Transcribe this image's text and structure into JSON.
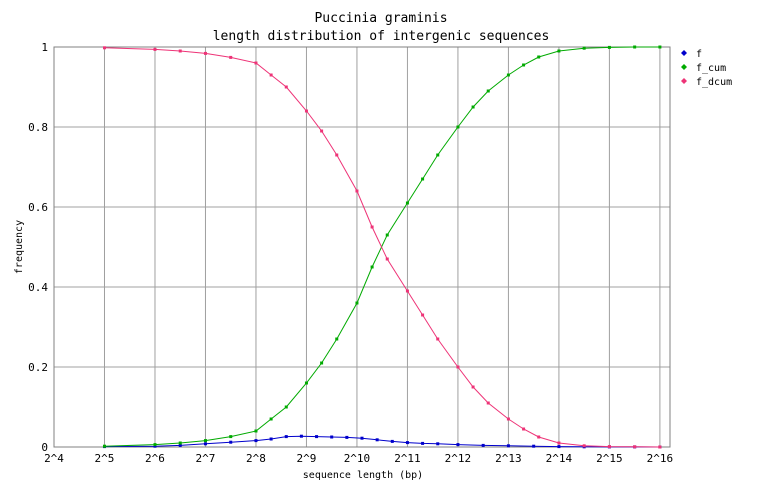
{
  "chart_data": {
    "type": "line",
    "title": "Puccinia graminis",
    "subtitle": "length distribution of intergenic sequences",
    "xlabel": "sequence length (bp)",
    "ylabel": "frequency",
    "xscale": "log2",
    "xlim": [
      4,
      16.2
    ],
    "ylim": [
      0,
      1
    ],
    "grid": true,
    "legend_position": "right",
    "x_ticks": [
      {
        "exp": 4,
        "label": "2^4"
      },
      {
        "exp": 5,
        "label": "2^5"
      },
      {
        "exp": 6,
        "label": "2^6"
      },
      {
        "exp": 7,
        "label": "2^7"
      },
      {
        "exp": 8,
        "label": "2^8"
      },
      {
        "exp": 9,
        "label": "2^9"
      },
      {
        "exp": 10,
        "label": "2^10"
      },
      {
        "exp": 11,
        "label": "2^11"
      },
      {
        "exp": 12,
        "label": "2^12"
      },
      {
        "exp": 13,
        "label": "2^13"
      },
      {
        "exp": 14,
        "label": "2^14"
      },
      {
        "exp": 15,
        "label": "2^15"
      },
      {
        "exp": 16,
        "label": "2^16"
      }
    ],
    "y_ticks": [
      {
        "value": 0,
        "label": "0"
      },
      {
        "value": 0.2,
        "label": "0.2"
      },
      {
        "value": 0.4,
        "label": "0.4"
      },
      {
        "value": 0.6,
        "label": "0.6"
      },
      {
        "value": 0.8,
        "label": "0.8"
      },
      {
        "value": 1,
        "label": "1"
      }
    ],
    "series": [
      {
        "name": "f",
        "color": "#0000cc",
        "x_exp": [
          5.0,
          6.0,
          6.5,
          7.0,
          7.5,
          8.0,
          8.3,
          8.6,
          8.9,
          9.2,
          9.5,
          9.8,
          10.1,
          10.4,
          10.7,
          11.0,
          11.3,
          11.6,
          12.0,
          12.5,
          13.0,
          13.5,
          14.0,
          14.5,
          15.0,
          15.5,
          16.0
        ],
        "y": [
          0.001,
          0.002,
          0.004,
          0.008,
          0.012,
          0.016,
          0.02,
          0.026,
          0.027,
          0.026,
          0.025,
          0.024,
          0.022,
          0.018,
          0.014,
          0.011,
          0.009,
          0.008,
          0.006,
          0.004,
          0.003,
          0.002,
          0.001,
          0.0005,
          0.0003,
          0.0002,
          0.0001
        ]
      },
      {
        "name": "f_cum",
        "color": "#00aa00",
        "x_exp": [
          5.0,
          6.0,
          6.5,
          7.0,
          7.5,
          8.0,
          8.3,
          8.6,
          9.0,
          9.3,
          9.6,
          10.0,
          10.3,
          10.6,
          11.0,
          11.3,
          11.6,
          12.0,
          12.3,
          12.6,
          13.0,
          13.3,
          13.6,
          14.0,
          14.5,
          15.0,
          15.5,
          16.0
        ],
        "y": [
          0.002,
          0.006,
          0.01,
          0.016,
          0.026,
          0.04,
          0.07,
          0.1,
          0.16,
          0.21,
          0.27,
          0.36,
          0.45,
          0.53,
          0.61,
          0.67,
          0.73,
          0.8,
          0.85,
          0.89,
          0.93,
          0.955,
          0.975,
          0.99,
          0.997,
          0.999,
          1.0,
          1.0
        ]
      },
      {
        "name": "f_dcum",
        "color": "#ee3377",
        "x_exp": [
          5.0,
          6.0,
          6.5,
          7.0,
          7.5,
          8.0,
          8.3,
          8.6,
          9.0,
          9.3,
          9.6,
          10.0,
          10.3,
          10.6,
          11.0,
          11.3,
          11.6,
          12.0,
          12.3,
          12.6,
          13.0,
          13.3,
          13.6,
          14.0,
          14.5,
          15.0,
          15.5,
          16.0
        ],
        "y": [
          0.998,
          0.994,
          0.99,
          0.984,
          0.974,
          0.96,
          0.93,
          0.9,
          0.84,
          0.79,
          0.73,
          0.64,
          0.55,
          0.47,
          0.39,
          0.33,
          0.27,
          0.2,
          0.15,
          0.11,
          0.07,
          0.045,
          0.025,
          0.01,
          0.003,
          0.001,
          0.0005,
          0.0
        ]
      }
    ]
  }
}
